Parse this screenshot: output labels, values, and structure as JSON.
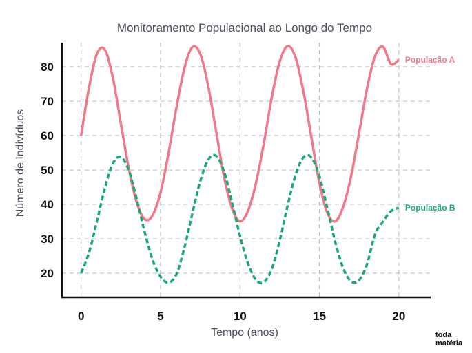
{
  "chart_data": {
    "type": "line",
    "title": "Monitoramento Populacional ao Longo do Tempo",
    "xlabel": "Tempo (anos)",
    "ylabel": "Número de Indivíduos",
    "xlim": [
      -1.2,
      22
    ],
    "ylim": [
      13,
      87
    ],
    "x_ticks": [
      0,
      5,
      10,
      15,
      20
    ],
    "y_ticks": [
      20,
      30,
      40,
      50,
      60,
      70,
      80
    ],
    "grid": true,
    "series": [
      {
        "name": "População A",
        "color": "#f07887",
        "style": "solid",
        "x": [
          0,
          0.5,
          1,
          1.5,
          2,
          2.5,
          3,
          3.5,
          4,
          4.5,
          5,
          5.5,
          6,
          6.5,
          7,
          7.5,
          8,
          8.5,
          9,
          9.5,
          10,
          10.5,
          11,
          11.5,
          12,
          12.5,
          13,
          13.5,
          14,
          14.5,
          15,
          15.5,
          16,
          16.5,
          17,
          17.5,
          18,
          18.5,
          19,
          19.5,
          20
        ],
        "values": [
          60,
          74,
          83.8,
          84.9,
          76.8,
          63.6,
          50.5,
          40.6,
          35.7,
          36.8,
          43.5,
          54.8,
          68.1,
          79.6,
          85.7,
          83.7,
          74.4,
          61.2,
          48.0,
          38.8,
          35.1,
          38.1,
          46.1,
          57.8,
          71.1,
          81.5,
          86,
          82.6,
          72.6,
          59.3,
          46.1,
          37.5,
          35.1,
          39.4,
          48.4,
          60.9,
          73.8,
          83.1,
          85.8,
          80.8,
          82
        ]
      },
      {
        "name": "População B",
        "color": "#1aa876",
        "style": "dashed",
        "x": [
          0,
          0.5,
          1,
          1.5,
          2,
          2.5,
          3,
          3.5,
          4,
          4.5,
          5,
          5.5,
          6,
          6.5,
          7,
          7.5,
          8,
          8.5,
          9,
          9.5,
          10,
          10.5,
          11,
          11.5,
          12,
          12.5,
          13,
          13.5,
          14,
          14.5,
          15,
          15.5,
          16,
          16.5,
          17,
          17.5,
          18,
          18.5,
          19,
          19.5,
          20
        ],
        "values": [
          20,
          26,
          35.1,
          44.8,
          51.9,
          53.8,
          49.9,
          41.5,
          32.0,
          23.9,
          19.0,
          17.3,
          19.7,
          27.4,
          37.3,
          46.7,
          53.0,
          54.1,
          49.5,
          40.6,
          30.8,
          22.9,
          18.1,
          17.4,
          21.2,
          29.5,
          39.7,
          48.6,
          53.7,
          53.6,
          48.1,
          38.8,
          29.0,
          21.4,
          17.6,
          18.0,
          22.7,
          31.3,
          35,
          38,
          39
        ]
      }
    ]
  },
  "logo": {
    "line1": "toda",
    "line2": "matéria"
  }
}
